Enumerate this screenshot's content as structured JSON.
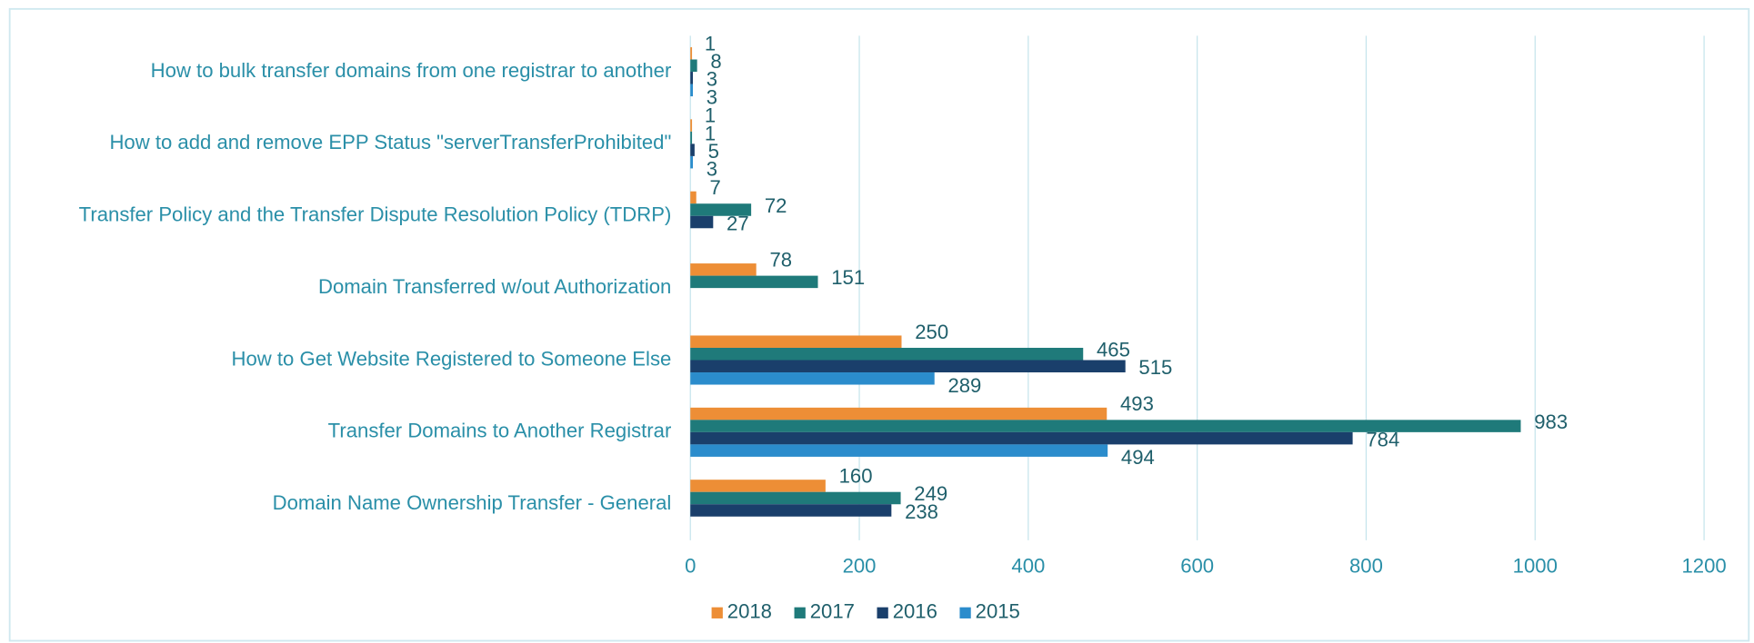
{
  "chart_data": {
    "type": "hbar",
    "categories": [
      "How to bulk transfer domains from one registrar to another",
      "How to add and remove EPP Status \"serverTransferProhibited\"",
      "Transfer Policy and the Transfer Dispute Resolution Policy (TDRP)",
      "Domain Transferred w/out Authorization",
      "How to Get Website Registered to Someone Else",
      "Transfer Domains to Another Registrar",
      "Domain Name Ownership Transfer - General"
    ],
    "series": [
      {
        "name": "2018",
        "color": "#ed8e36",
        "values": [
          1,
          1,
          7,
          78,
          250,
          493,
          160
        ]
      },
      {
        "name": "2017",
        "color": "#1f7a7a",
        "values": [
          8,
          1,
          72,
          151,
          465,
          983,
          249
        ]
      },
      {
        "name": "2016",
        "color": "#1a3f6b",
        "values": [
          3,
          5,
          27,
          null,
          515,
          784,
          238
        ]
      },
      {
        "name": "2015",
        "color": "#2b8ccc",
        "values": [
          3,
          3,
          null,
          null,
          289,
          494,
          null
        ]
      }
    ],
    "xlim": [
      0,
      1200
    ],
    "xticks": [
      0,
      200,
      400,
      600,
      800,
      1000,
      1200
    ],
    "grid": true,
    "legend": "bottom"
  }
}
